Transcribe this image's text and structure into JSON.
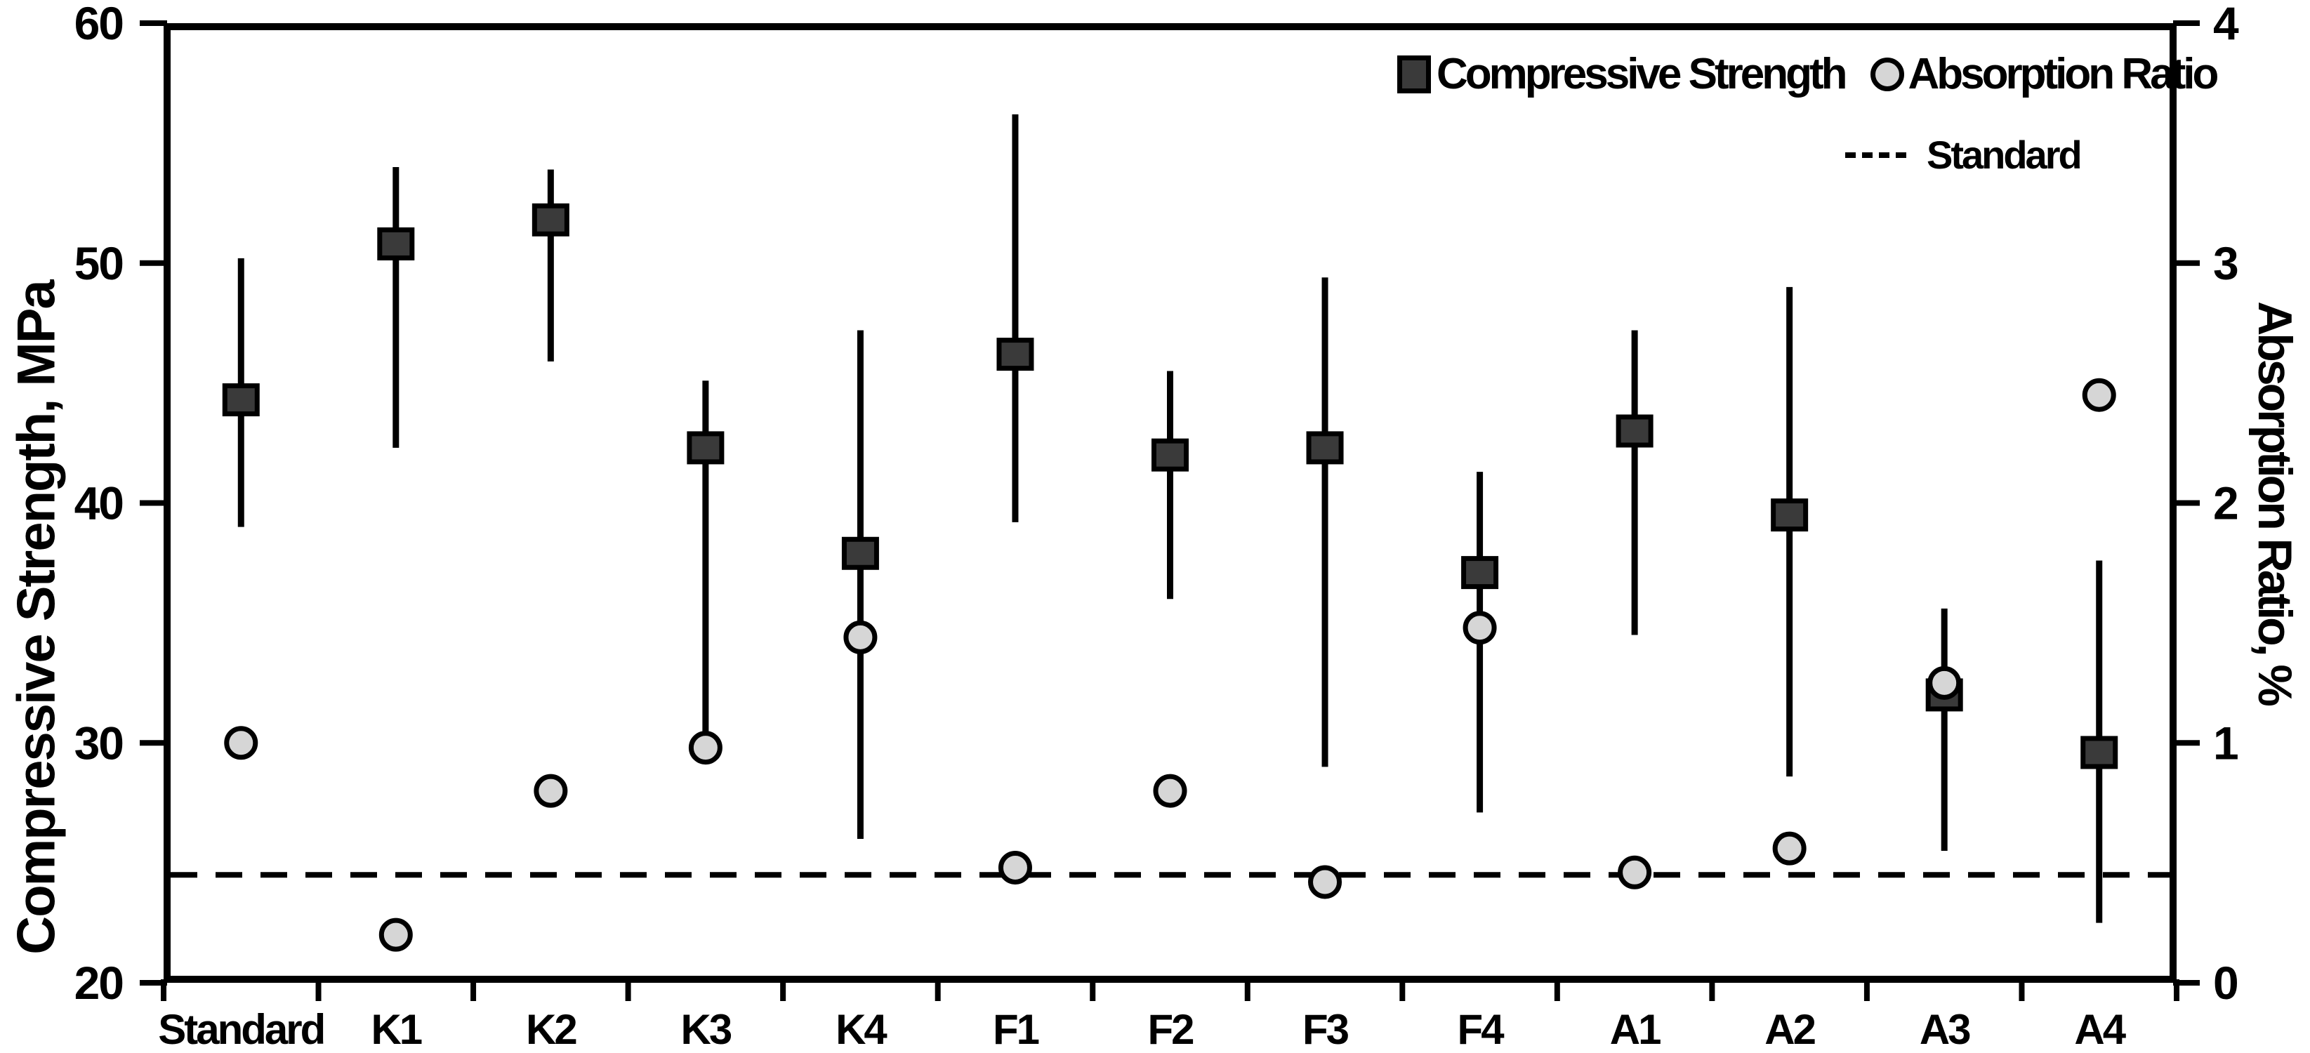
{
  "axes": {
    "left_title": "Compressive Strength, MPa",
    "right_title": "Absorption Ratio, %"
  },
  "legend": {
    "compressive": "Compressive Strength",
    "absorption": "Absorption Ratio",
    "standard": "Standard"
  },
  "colors": {
    "square_fill": "#3a3a3a",
    "circle_fill": "#d6d6d6",
    "line": "#000000"
  },
  "chart_data": {
    "type": "scatter",
    "subtype": "dual-axis points with error bars",
    "categories": [
      "Standard",
      "K1",
      "K2",
      "K3",
      "K4",
      "F1",
      "F2",
      "F3",
      "F4",
      "A1",
      "A2",
      "A3",
      "A4"
    ],
    "series": [
      {
        "name": "Compressive Strength",
        "axis": "left",
        "marker": "square",
        "color": "#3a3a3a",
        "values": [
          44.3,
          50.8,
          51.8,
          42.3,
          37.9,
          46.2,
          42.0,
          42.3,
          37.1,
          43.0,
          39.5,
          32.0,
          29.6
        ],
        "error_high": [
          50.2,
          54.0,
          53.9,
          45.1,
          47.2,
          56.2,
          45.5,
          49.4,
          41.3,
          47.2,
          49.0,
          35.6,
          37.6
        ],
        "error_low": [
          39.0,
          42.3,
          45.9,
          30.0,
          26.0,
          39.2,
          36.0,
          29.0,
          27.1,
          34.5,
          28.6,
          25.5,
          22.5
        ]
      },
      {
        "name": "Absorption Ratio",
        "axis": "right",
        "marker": "circle",
        "color": "#d6d6d6",
        "values": [
          1.0,
          0.2,
          0.8,
          0.98,
          1.44,
          0.48,
          0.8,
          0.42,
          1.48,
          0.46,
          0.56,
          1.25,
          2.45
        ]
      }
    ],
    "reference_line": {
      "label": "Standard",
      "axis": "left",
      "value": 24.5,
      "style": "dashed"
    },
    "y_left": {
      "label": "Compressive Strength, MPa",
      "min": 20,
      "max": 60,
      "ticks": [
        20,
        30,
        40,
        50,
        60
      ]
    },
    "y_right": {
      "label": "Absorption Ratio, %",
      "min": 0,
      "max": 4,
      "ticks": [
        0,
        1,
        2,
        3,
        4
      ]
    },
    "grid": false,
    "legend_position": "top-right-inside"
  }
}
